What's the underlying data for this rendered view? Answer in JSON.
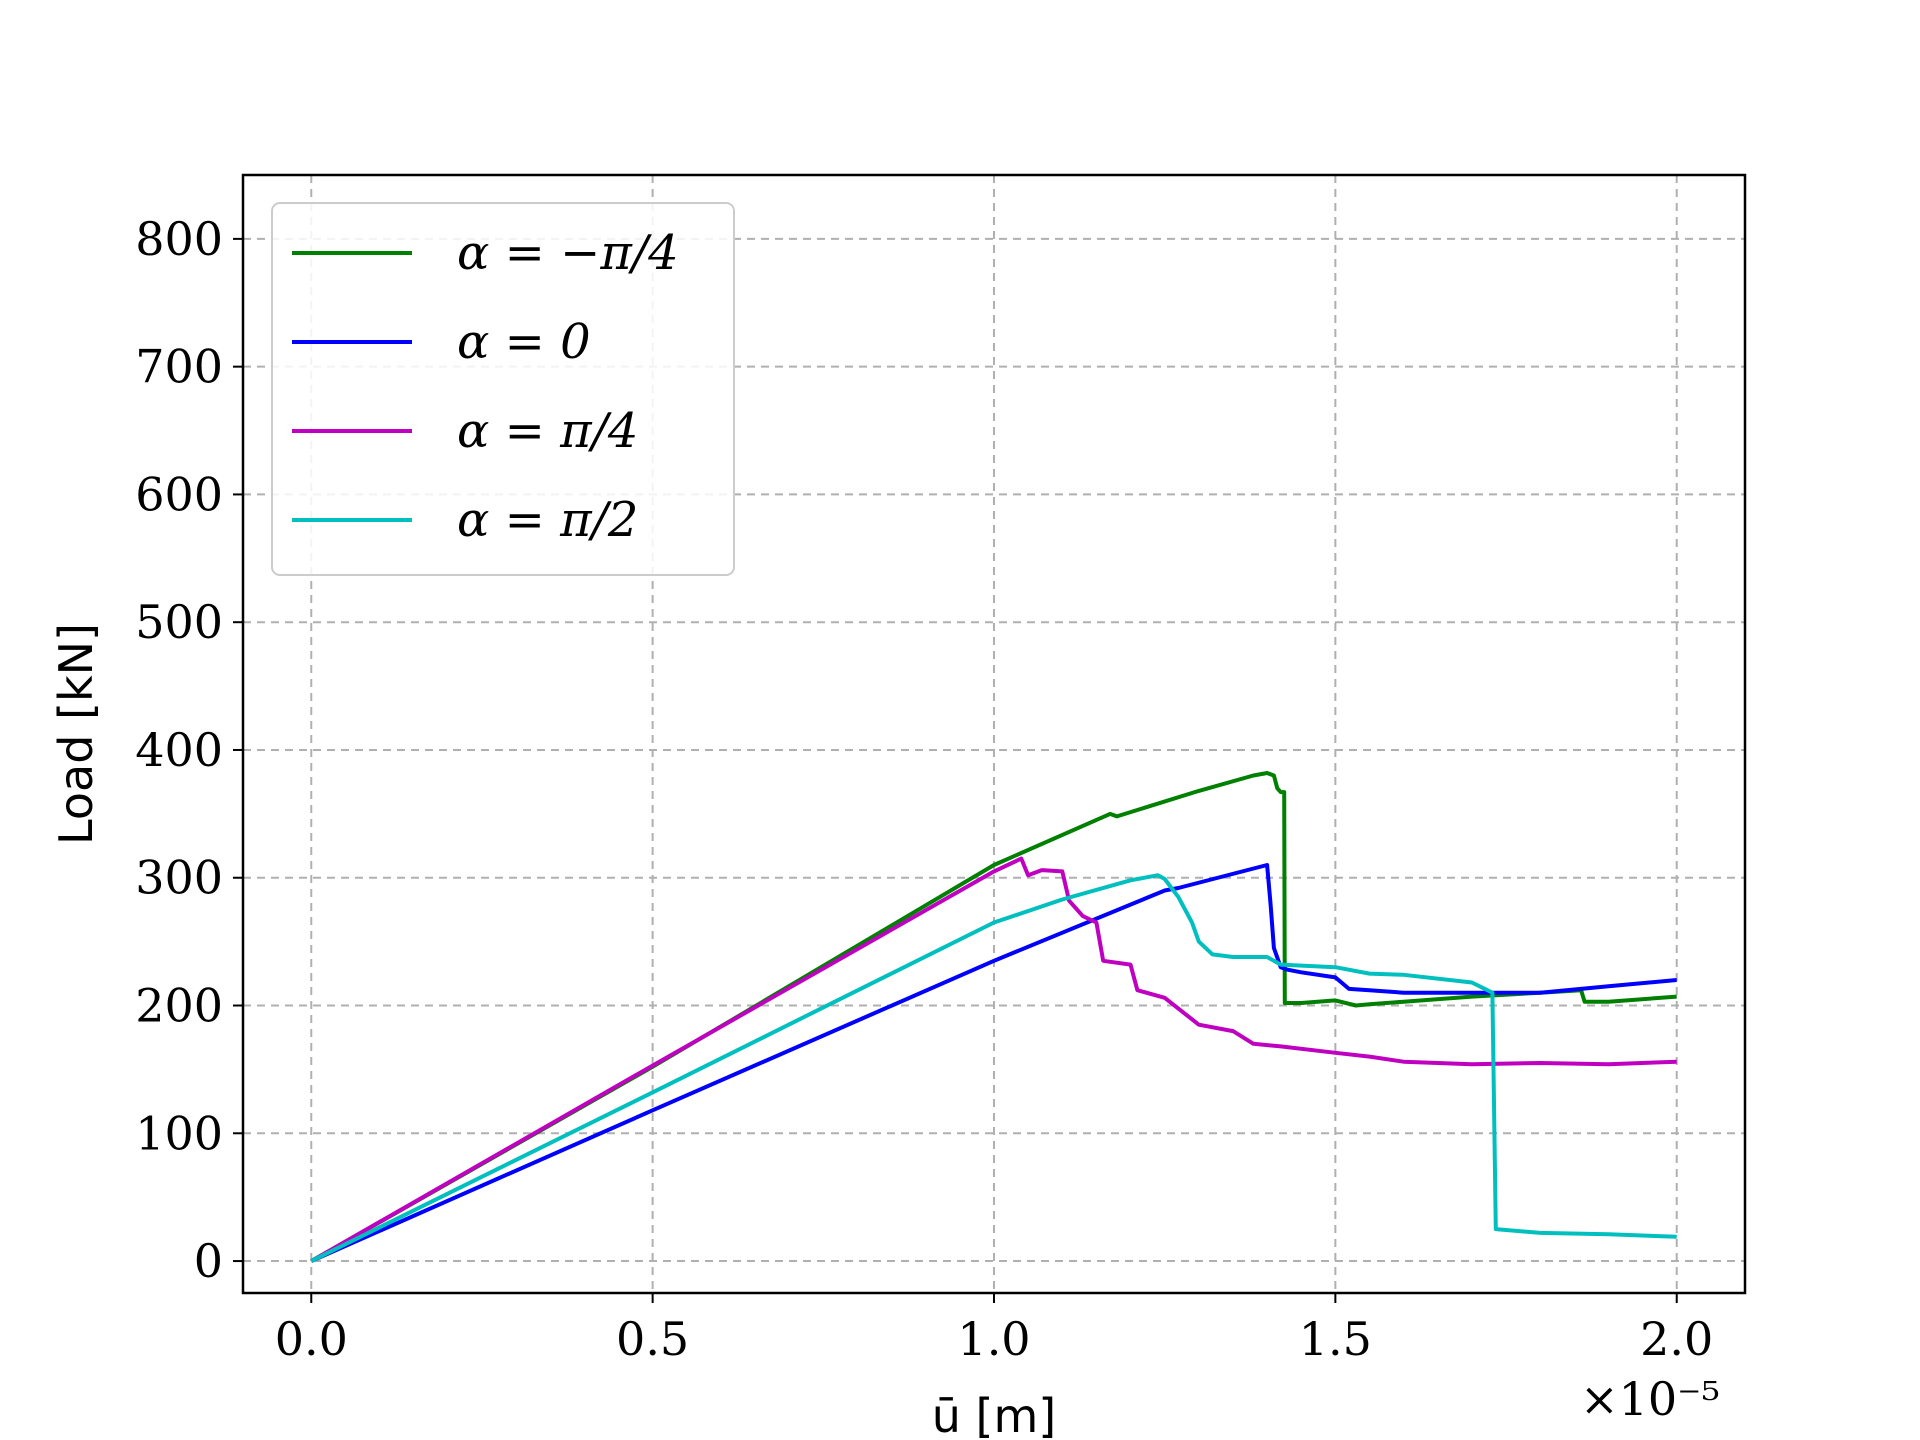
{
  "chart_data": {
    "type": "line",
    "title": "",
    "xlabel": "ū [m]",
    "ylabel": "Load [kN]",
    "x_offset_label": "×10⁻⁵",
    "xlim": [
      -0.1,
      2.1
    ],
    "ylim": [
      -25,
      850
    ],
    "xticks": [
      0.0,
      0.5,
      1.0,
      1.5,
      2.0
    ],
    "xtick_labels": [
      "0.0",
      "0.5",
      "1.0",
      "1.5",
      "2.0"
    ],
    "yticks": [
      0,
      100,
      200,
      300,
      400,
      500,
      600,
      700,
      800
    ],
    "ytick_labels": [
      "0",
      "100",
      "200",
      "300",
      "400",
      "500",
      "600",
      "700",
      "800"
    ],
    "grid": true,
    "legend_position": "top-left",
    "series": [
      {
        "name": "α = −π/4",
        "color": "#008000",
        "x": [
          0.0,
          0.5,
          1.0,
          1.17,
          1.18,
          1.3,
          1.38,
          1.4,
          1.41,
          1.415,
          1.42,
          1.425,
          1.426,
          1.45,
          1.5,
          1.53,
          1.55,
          1.6,
          1.7,
          1.8,
          1.86,
          1.865,
          1.9,
          2.0
        ],
        "y": [
          0,
          152,
          310,
          350,
          348,
          368,
          380,
          382,
          380,
          370,
          367,
          367,
          202,
          202,
          204,
          200,
          201,
          203,
          207,
          210,
          212,
          203,
          203,
          207
        ]
      },
      {
        "name": "α = 0",
        "color": "#0000ff",
        "x": [
          0.0,
          0.5,
          1.0,
          1.25,
          1.27,
          1.4,
          1.405,
          1.41,
          1.42,
          1.43,
          1.45,
          1.5,
          1.52,
          1.55,
          1.6,
          1.65,
          1.7,
          1.8,
          1.9,
          2.0
        ],
        "y": [
          0,
          118,
          235,
          290,
          292,
          310,
          280,
          245,
          230,
          228,
          226,
          222,
          213,
          212,
          210,
          210,
          210,
          210,
          215,
          220
        ]
      },
      {
        "name": "α = π/4",
        "color": "#c000c0",
        "x": [
          0.0,
          0.5,
          1.0,
          1.04,
          1.05,
          1.07,
          1.1,
          1.11,
          1.13,
          1.15,
          1.16,
          1.2,
          1.21,
          1.25,
          1.3,
          1.35,
          1.38,
          1.42,
          1.5,
          1.55,
          1.6,
          1.7,
          1.8,
          1.9,
          2.0
        ],
        "y": [
          0,
          153,
          305,
          315,
          302,
          306,
          305,
          282,
          270,
          265,
          235,
          232,
          212,
          206,
          185,
          180,
          170,
          168,
          163,
          160,
          156,
          154,
          155,
          154,
          156
        ]
      },
      {
        "name": "α = π/2",
        "color": "#00bfbf",
        "x": [
          0.0,
          0.5,
          1.0,
          1.1,
          1.2,
          1.24,
          1.25,
          1.27,
          1.29,
          1.3,
          1.32,
          1.35,
          1.4,
          1.42,
          1.5,
          1.55,
          1.6,
          1.7,
          1.73,
          1.735,
          1.8,
          1.9,
          2.0
        ],
        "y": [
          0,
          132,
          265,
          283,
          298,
          302,
          299,
          285,
          265,
          250,
          240,
          238,
          238,
          232,
          230,
          225,
          224,
          218,
          210,
          25,
          22,
          21,
          19
        ]
      }
    ]
  }
}
